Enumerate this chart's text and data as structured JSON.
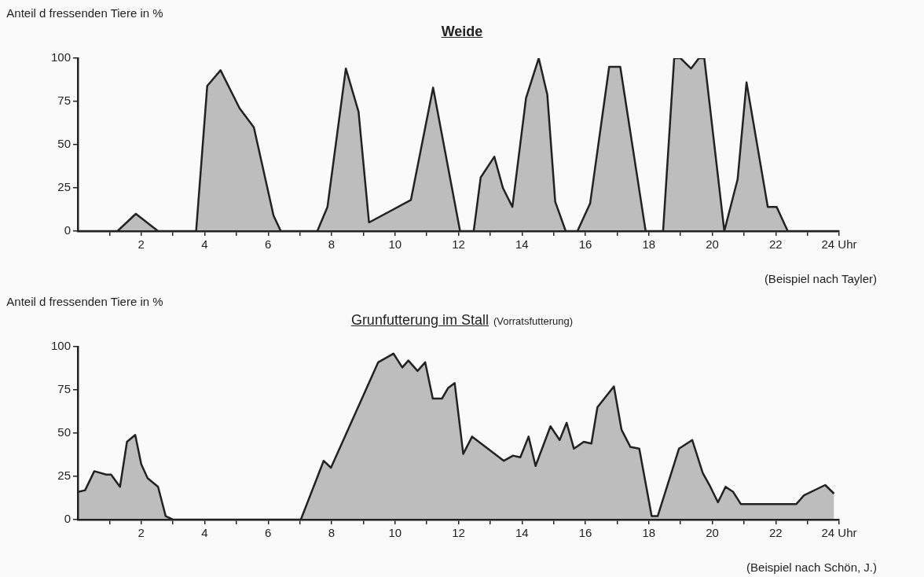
{
  "chart_data": [
    {
      "type": "area",
      "title": "Weide",
      "ylabel": "Anteil d fressenden Tiere in %",
      "annotations": [
        "(Beispiel nach Tayler)"
      ],
      "series": [
        {
          "color": "#222222",
          "x": [
            0,
            1.25,
            1.83,
            2.53,
            3.73,
            4.08,
            4.5,
            5.1,
            5.55,
            6.17,
            6.4,
            7.55,
            7.87,
            8.45,
            8.85,
            9.18,
            10.5,
            11.2,
            12.05,
            12.48,
            12.7,
            13.13,
            13.4,
            13.7,
            14.13,
            14.53,
            14.8,
            15.05,
            15.38,
            15.75,
            16.15,
            16.75,
            17.1,
            17.9,
            18.45,
            18.8,
            19,
            19.33,
            19.58,
            19.75,
            20.38,
            20.8,
            21.08,
            21.75,
            22.03,
            22.38,
            24
          ],
          "values": [
            0,
            0,
            10,
            0,
            0,
            84,
            93,
            71,
            60,
            9,
            0,
            0,
            14,
            94,
            69,
            5,
            18,
            83,
            0,
            0,
            31,
            43,
            25,
            14,
            77,
            100,
            79,
            17,
            0,
            0,
            16,
            95,
            95,
            0,
            0,
            100,
            100,
            94,
            100,
            100,
            0,
            30,
            86,
            14,
            14,
            0,
            0
          ]
        }
      ],
      "xlim": [
        0,
        24
      ],
      "xticks": [
        {
          "value": 1,
          "label": null
        },
        2,
        {
          "value": 3,
          "label": null
        },
        4,
        {
          "value": 5,
          "label": null
        },
        6,
        {
          "value": 7,
          "label": null
        },
        8,
        {
          "value": 9,
          "label": null
        },
        10,
        {
          "value": 11,
          "label": null
        },
        12,
        {
          "value": 13,
          "label": null
        },
        14,
        {
          "value": 15,
          "label": null
        },
        16,
        {
          "value": 17,
          "label": null
        },
        18,
        {
          "value": 19,
          "label": null
        },
        20,
        {
          "value": 21,
          "label": null
        },
        22,
        {
          "value": 23,
          "label": null
        },
        {
          "value": 24,
          "label": "24 Uhr"
        }
      ],
      "ylim": [
        0,
        100
      ],
      "yticks": [
        0,
        25,
        50,
        75,
        100
      ],
      "grid": false,
      "legend": false,
      "marker": "none",
      "line_style": "solid"
    },
    {
      "type": "area",
      "title": "Grunfutterung im Stall",
      "subtitle": "(Vorratsfutterung)",
      "ylabel": "Anteil d fressenden Tiere in %",
      "annotations": [
        "(Beispiel nach Schön, J.)"
      ],
      "series": [
        {
          "color": "#222222",
          "x": [
            0,
            0.23,
            0.52,
            0.9,
            1.05,
            1.33,
            1.55,
            1.81,
            2,
            2.2,
            2.53,
            2.77,
            3,
            7.03,
            7.75,
            7.98,
            9.47,
            9.95,
            10.23,
            10.42,
            10.71,
            10.95,
            11.19,
            11.48,
            11.67,
            11.88,
            12.15,
            12.43,
            13.43,
            13.72,
            13.95,
            14.21,
            14.43,
            14.9,
            15.19,
            15.41,
            15.64,
            15.95,
            16.19,
            16.38,
            16.9,
            17.14,
            17.42,
            17.7,
            18.09,
            18.28,
            18.95,
            19.37,
            19.7,
            19.94,
            20.18,
            20.42,
            20.66,
            20.9,
            22.65,
            22.89,
            23.56,
            23.84
          ],
          "values": [
            16,
            17,
            28,
            26,
            26,
            19,
            45,
            49,
            32,
            24,
            19,
            2,
            0,
            0,
            34,
            30,
            91,
            96,
            88,
            92,
            86,
            91,
            70,
            70,
            76,
            79,
            38,
            48,
            34,
            37,
            36,
            48,
            31,
            54,
            46,
            56,
            41,
            45,
            44,
            65,
            77,
            52,
            42,
            41,
            2,
            2,
            41,
            46,
            27,
            19,
            10,
            19,
            16,
            9,
            9,
            14,
            20,
            15
          ]
        }
      ],
      "xlim": [
        0,
        24
      ],
      "xticks": [
        {
          "value": 1,
          "label": null
        },
        2,
        {
          "value": 3,
          "label": null
        },
        4,
        {
          "value": 5,
          "label": null
        },
        6,
        {
          "value": 7,
          "label": null
        },
        8,
        {
          "value": 9,
          "label": null
        },
        10,
        {
          "value": 11,
          "label": null
        },
        12,
        {
          "value": 13,
          "label": null
        },
        14,
        {
          "value": 15,
          "label": null
        },
        16,
        {
          "value": 17,
          "label": null
        },
        18,
        {
          "value": 19,
          "label": null
        },
        20,
        {
          "value": 21,
          "label": null
        },
        22,
        {
          "value": 23,
          "label": null
        },
        {
          "value": 24,
          "label": "24 Uhr"
        }
      ],
      "ylim": [
        0,
        100
      ],
      "yticks": [
        0,
        25,
        50,
        75,
        100
      ],
      "grid": false,
      "legend": false,
      "marker": "none",
      "line_style": "solid"
    }
  ]
}
